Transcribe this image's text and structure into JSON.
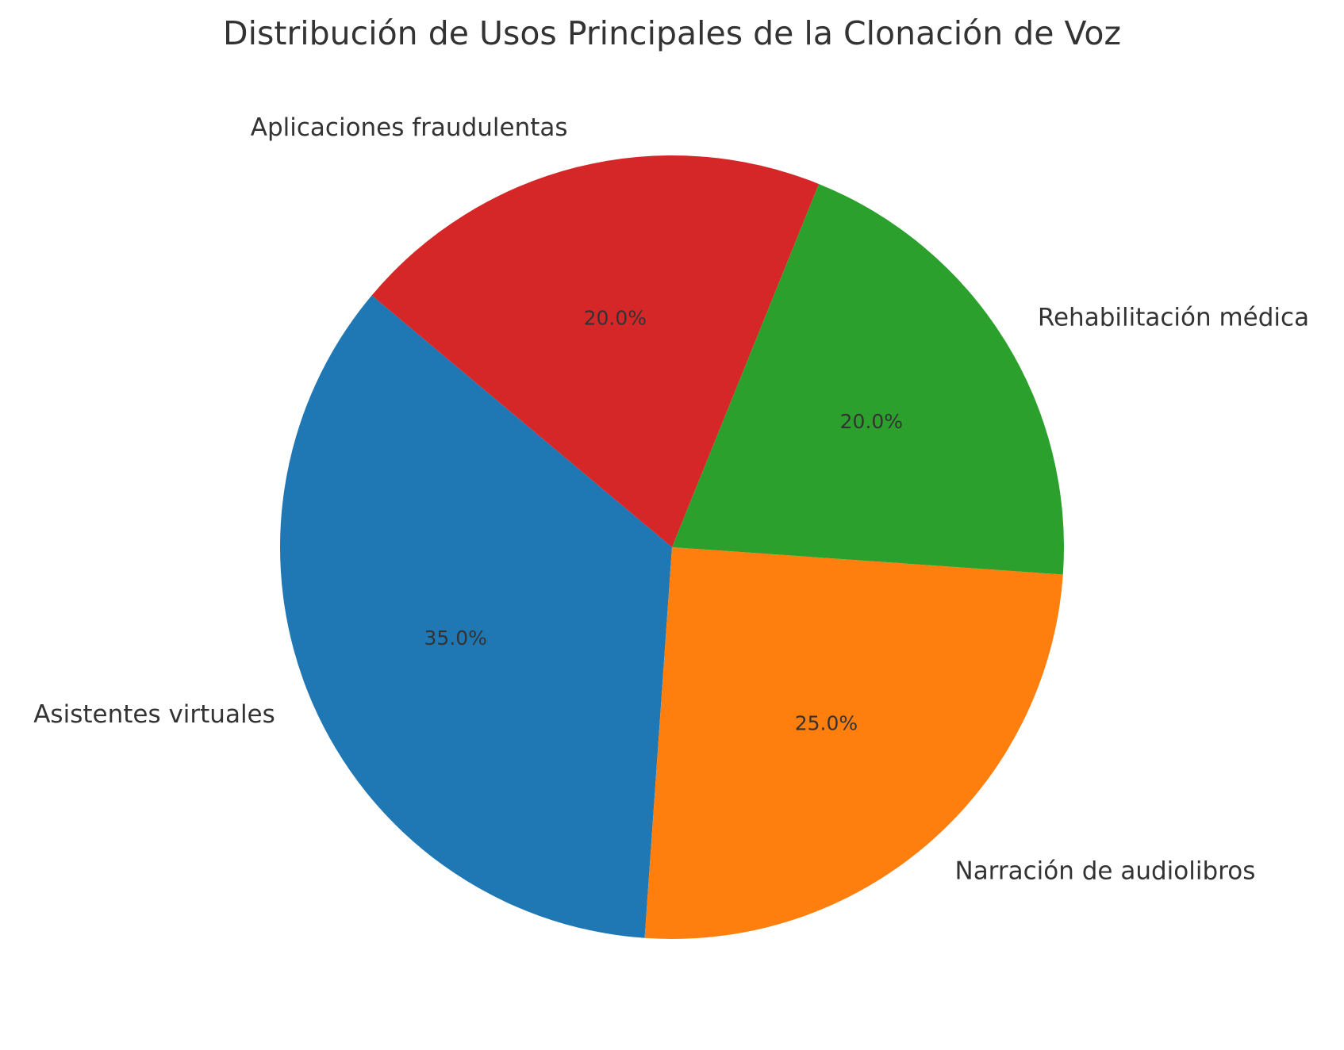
{
  "chart_data": {
    "type": "pie",
    "title": "Distribución de Usos Principales de la Clonación de Voz",
    "categories": [
      "Asistentes virtuales",
      "Narración de audiolibros",
      "Rehabilitación médica",
      "Aplicaciones fraudulentas"
    ],
    "values": [
      35.0,
      25.0,
      20.0,
      20.0
    ],
    "value_labels": [
      "35.0%",
      "25.0%",
      "20.0%",
      "20.0%"
    ],
    "colors": [
      "#1f77b4",
      "#ff7f0e",
      "#2ca02c",
      "#d62728"
    ],
    "start_angle_deg": 140,
    "direction": "counterclockwise",
    "legend": "none"
  }
}
